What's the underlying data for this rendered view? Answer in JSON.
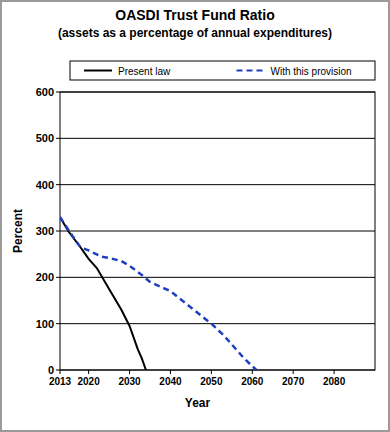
{
  "chart_data": {
    "type": "line",
    "title": "OASDI Trust Fund Ratio",
    "subtitle": "(assets as a percentage of annual expenditures)",
    "x_label": "Year",
    "y_label": "Percent",
    "xlim": [
      2013,
      2090
    ],
    "xticks": [
      2013,
      2020,
      2030,
      2040,
      2050,
      2060,
      2070,
      2080
    ],
    "ylim": [
      0,
      600
    ],
    "yticks": [
      0,
      100,
      200,
      300,
      400,
      500,
      600
    ],
    "grid": true,
    "legend": "top",
    "series": [
      {
        "name": "Present law",
        "color": "#000000",
        "line_style": "solid",
        "x": [
          2013,
          2015,
          2018,
          2020,
          2022,
          2025,
          2028,
          2030,
          2032,
          2033,
          2034
        ],
        "values": [
          330,
          300,
          265,
          240,
          220,
          175,
          130,
          95,
          45,
          25,
          0
        ]
      },
      {
        "name": "With this provision",
        "color": "#1f3fbf",
        "line_style": "dashed",
        "x": [
          2013,
          2016,
          2018,
          2020,
          2023,
          2025,
          2028,
          2030,
          2033,
          2035,
          2040,
          2045,
          2050,
          2053,
          2055,
          2058,
          2061
        ],
        "values": [
          330,
          290,
          265,
          258,
          245,
          242,
          235,
          225,
          205,
          190,
          170,
          135,
          100,
          75,
          55,
          25,
          0
        ]
      }
    ]
  }
}
